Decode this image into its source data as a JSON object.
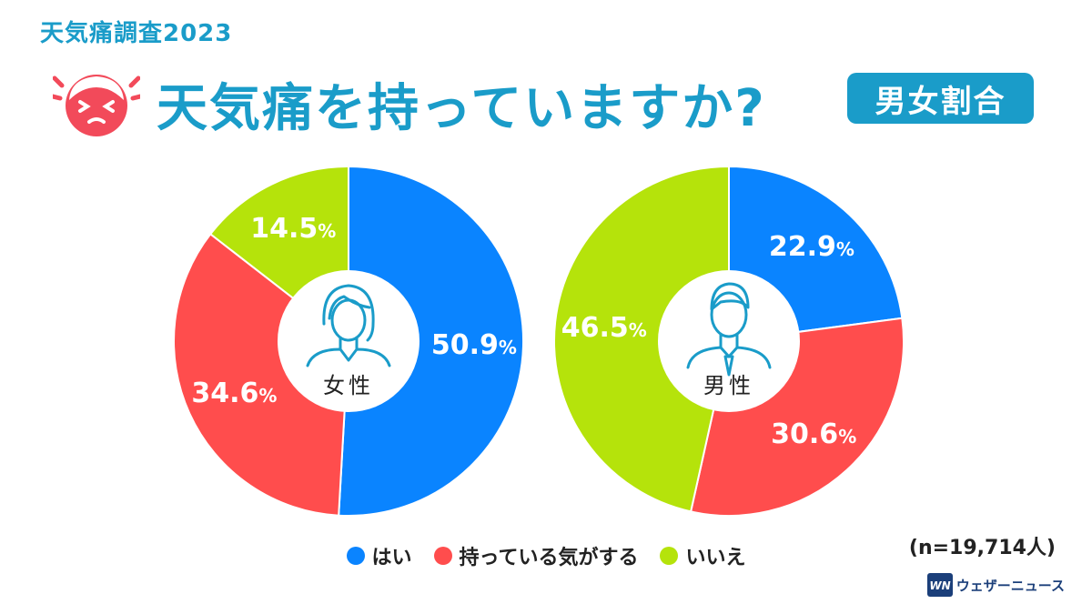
{
  "header": {
    "subtitle": "天気痛調査2023",
    "title": "天気痛を持っていますか?",
    "badge": "男女割合"
  },
  "colors": {
    "accent": "#1a9cc9",
    "yes": "#0a84ff",
    "feel": "#ff4d4d",
    "no": "#b5e30b",
    "face": "#f24a5a"
  },
  "icons": {
    "header": "pained-face-icon",
    "female": "woman-icon",
    "male": "man-icon",
    "brand": "weathernews-logo-icon"
  },
  "chart_data": [
    {
      "type": "pie",
      "donut": true,
      "center_label": "女性",
      "slices": [
        {
          "label": "はい",
          "value": 50.9,
          "display": "50.9%"
        },
        {
          "label": "持っている気がする",
          "value": 34.6,
          "display": "34.6%"
        },
        {
          "label": "いいえ",
          "value": 14.5,
          "display": "14.5%"
        }
      ]
    },
    {
      "type": "pie",
      "donut": true,
      "center_label": "男性",
      "slices": [
        {
          "label": "はい",
          "value": 22.9,
          "display": "22.9%"
        },
        {
          "label": "持っている気がする",
          "value": 30.6,
          "display": "30.6%"
        },
        {
          "label": "いいえ",
          "value": 46.5,
          "display": "46.5%"
        }
      ]
    }
  ],
  "legend": [
    {
      "label": "はい",
      "color": "#0a84ff"
    },
    {
      "label": "持っている気がする",
      "color": "#ff4d4d"
    },
    {
      "label": "いいえ",
      "color": "#b5e30b"
    }
  ],
  "sample_note": "(n=19,714人)",
  "brand": {
    "logo_text": "WN",
    "name": "ウェザーニュース"
  }
}
